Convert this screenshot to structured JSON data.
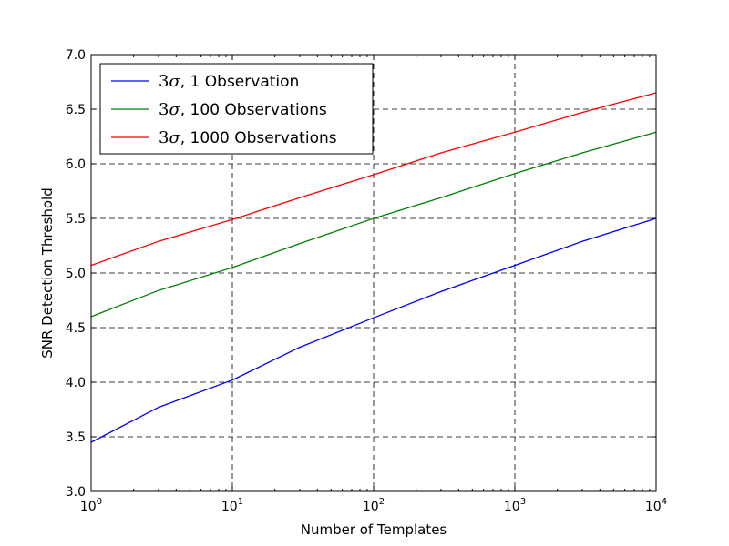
{
  "chart_data": {
    "type": "line",
    "xlabel": "Number of Templates",
    "ylabel": "SNR Detection Threshold",
    "x_scale": "log",
    "xlim": [
      1,
      10000
    ],
    "ylim": [
      3.0,
      7.0
    ],
    "x_ticks": [
      {
        "value": 1,
        "base": "10",
        "exp": "0"
      },
      {
        "value": 10,
        "base": "10",
        "exp": "1"
      },
      {
        "value": 100,
        "base": "10",
        "exp": "2"
      },
      {
        "value": 1000,
        "base": "10",
        "exp": "3"
      },
      {
        "value": 10000,
        "base": "10",
        "exp": "4"
      }
    ],
    "y_ticks": [
      {
        "value": 3.0,
        "label": "3.0"
      },
      {
        "value": 3.5,
        "label": "3.5"
      },
      {
        "value": 4.0,
        "label": "4.0"
      },
      {
        "value": 4.5,
        "label": "4.5"
      },
      {
        "value": 5.0,
        "label": "5.0"
      },
      {
        "value": 5.5,
        "label": "5.5"
      },
      {
        "value": 6.0,
        "label": "6.0"
      },
      {
        "value": 6.5,
        "label": "6.5"
      },
      {
        "value": 7.0,
        "label": "7.0"
      }
    ],
    "grid": true,
    "legend_position": "top-left",
    "series": [
      {
        "name": "3σ, 1 Observation",
        "name_prefix": "3",
        "name_symbol": "σ",
        "name_suffix": ", 1 Observation",
        "color": "#0000ff",
        "x": [
          1,
          3,
          10,
          30,
          100,
          300,
          1000,
          3000,
          10000
        ],
        "y": [
          3.45,
          3.77,
          4.02,
          4.32,
          4.59,
          4.83,
          5.07,
          5.29,
          5.5
        ]
      },
      {
        "name": "3σ, 100 Observations",
        "name_prefix": "3",
        "name_symbol": "σ",
        "name_suffix": ", 100 Observations",
        "color": "#008000",
        "x": [
          1,
          3,
          10,
          30,
          100,
          300,
          1000,
          3000,
          10000
        ],
        "y": [
          4.6,
          4.84,
          5.05,
          5.27,
          5.5,
          5.69,
          5.91,
          6.1,
          6.29
        ]
      },
      {
        "name": "3σ, 1000 Observations",
        "name_prefix": "3",
        "name_symbol": "σ",
        "name_suffix": ", 1000 Observations",
        "color": "#ff0000",
        "x": [
          1,
          3,
          10,
          30,
          100,
          300,
          1000,
          3000,
          10000
        ],
        "y": [
          5.07,
          5.29,
          5.49,
          5.69,
          5.9,
          6.1,
          6.29,
          6.47,
          6.65
        ]
      }
    ]
  }
}
